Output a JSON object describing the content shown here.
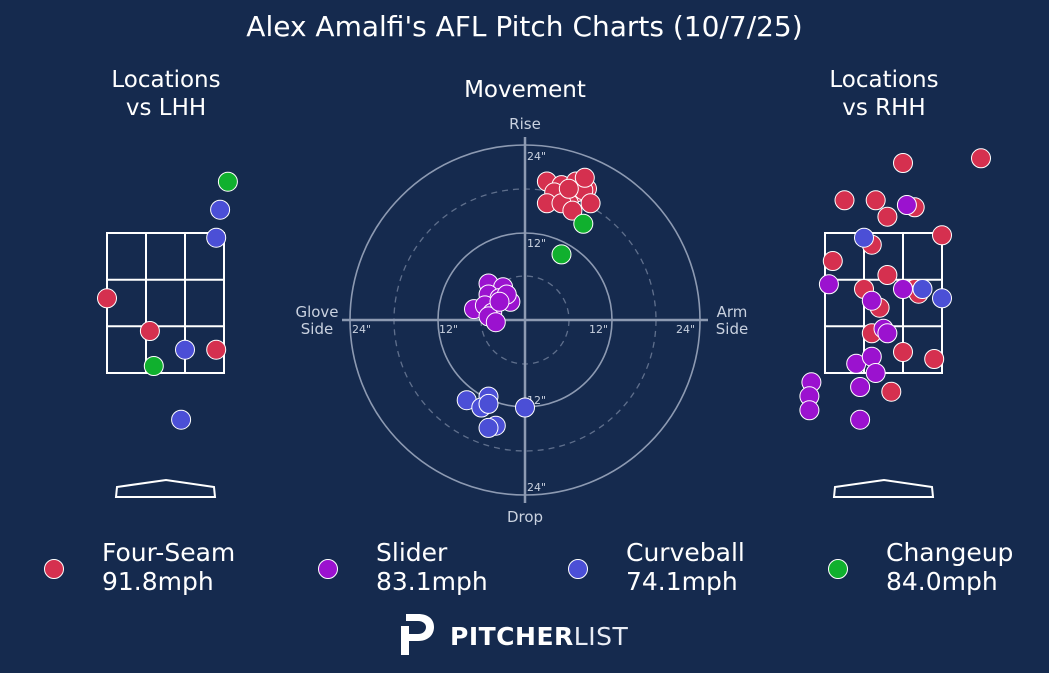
{
  "title": "Alex Amalfi's AFL Pitch Charts (10/7/25)",
  "panels": {
    "lhh_title_line1": "Locations",
    "lhh_title_line2": "vs LHH",
    "movement_title": "Movement",
    "rhh_title_line1": "Locations",
    "rhh_title_line2": "vs RHH"
  },
  "movement_labels": {
    "top": "Rise",
    "bottom": "Drop",
    "left_line1": "Glove",
    "left_line2": "Side",
    "right_line1": "Arm",
    "right_line2": "Side",
    "rings": [
      "12\"",
      "24\""
    ]
  },
  "colors": {
    "background": "#152a4e",
    "Four-Seam": "#d5304f",
    "Slider": "#9b12cf",
    "Curveball": "#4b4fd6",
    "Changeup": "#10b02e"
  },
  "legend": [
    {
      "pitch": "Four-Seam",
      "speed": "91.8mph"
    },
    {
      "pitch": "Slider",
      "speed": "83.1mph"
    },
    {
      "pitch": "Curveball",
      "speed": "74.1mph"
    },
    {
      "pitch": "Changeup",
      "speed": "84.0mph"
    }
  ],
  "logo": {
    "bold": "PITCHER",
    "light": "LIST"
  },
  "chart_data": [
    {
      "type": "scatter",
      "title": "Locations vs LHH",
      "x_unit": "zone-relative horizontal (-1.5 = left edge, 1.5 = right edge of zone)",
      "y_unit": "zone-relative vertical (0 = bottom, 3 = top of zone)",
      "series": [
        {
          "name": "Four-Seam",
          "points": [
            [
              -1.5,
              1.6
            ],
            [
              -0.4,
              0.9
            ],
            [
              1.3,
              0.5
            ]
          ]
        },
        {
          "name": "Curveball",
          "points": [
            [
              1.4,
              3.5
            ],
            [
              1.3,
              2.9
            ],
            [
              0.5,
              0.5
            ],
            [
              0.4,
              -1.0
            ]
          ]
        },
        {
          "name": "Changeup",
          "points": [
            [
              1.6,
              4.1
            ],
            [
              -0.3,
              0.15
            ]
          ]
        }
      ]
    },
    {
      "type": "scatter",
      "title": "Movement",
      "x_unit": "inches horizontal (negative = glove side, positive = arm side)",
      "y_unit": "inches vertical (positive = rise, negative = drop)",
      "xlim": [
        -24,
        24
      ],
      "ylim": [
        -24,
        24
      ],
      "series": [
        {
          "name": "Four-Seam",
          "points": [
            [
              3,
              19
            ],
            [
              5,
              18.5
            ],
            [
              7,
              19
            ],
            [
              8.5,
              18
            ],
            [
              5.5,
              17
            ],
            [
              7,
              17.5
            ],
            [
              4,
              17.5
            ],
            [
              6,
              16
            ],
            [
              3,
              16
            ],
            [
              8,
              17.8
            ],
            [
              5,
              16
            ],
            [
              9,
              16
            ],
            [
              6.5,
              15
            ],
            [
              6,
              18
            ],
            [
              8.2,
              19.5
            ]
          ]
        },
        {
          "name": "Slider",
          "points": [
            [
              -5,
              5
            ],
            [
              -3,
              4.5
            ],
            [
              -5,
              3.5
            ],
            [
              -3.5,
              3
            ],
            [
              -7,
              1.5
            ],
            [
              -5.5,
              2
            ],
            [
              -2,
              2.5
            ],
            [
              -4.5,
              1
            ],
            [
              -5,
              0.5
            ],
            [
              -4,
              -0.3
            ],
            [
              -2.5,
              3.5
            ],
            [
              -3.5,
              2.5
            ]
          ]
        },
        {
          "name": "Curveball",
          "points": [
            [
              -5,
              -10.5
            ],
            [
              -8,
              -11
            ],
            [
              -6,
              -12
            ],
            [
              -5,
              -11.5
            ],
            [
              -4,
              -14.5
            ],
            [
              -5,
              -14.8
            ],
            [
              0,
              -12
            ]
          ]
        },
        {
          "name": "Changeup",
          "points": [
            [
              8,
              13.2
            ],
            [
              5,
              9
            ]
          ]
        }
      ]
    },
    {
      "type": "scatter",
      "title": "Locations vs RHH",
      "x_unit": "zone-relative horizontal (-1.5 = left edge, 1.5 = right edge of zone)",
      "y_unit": "zone-relative vertical (0 = bottom, 3 = top of zone)",
      "series": [
        {
          "name": "Four-Seam",
          "points": [
            [
              0.5,
              4.5
            ],
            [
              2.5,
              4.6
            ],
            [
              -1.0,
              3.7
            ],
            [
              -0.2,
              3.7
            ],
            [
              0.1,
              3.35
            ],
            [
              0.8,
              3.55
            ],
            [
              -0.3,
              2.75
            ],
            [
              1.5,
              2.95
            ],
            [
              -1.3,
              2.4
            ],
            [
              0.1,
              2.1
            ],
            [
              -0.5,
              1.8
            ],
            [
              0.8,
              1.8
            ],
            [
              0.9,
              1.7
            ],
            [
              -0.1,
              1.4
            ],
            [
              -0.3,
              0.85
            ],
            [
              0.5,
              0.45
            ],
            [
              1.3,
              0.3
            ],
            [
              0.2,
              -0.4
            ]
          ]
        },
        {
          "name": "Slider",
          "points": [
            [
              0.6,
              3.6
            ],
            [
              -1.4,
              1.9
            ],
            [
              -0.3,
              1.55
            ],
            [
              0.5,
              1.8
            ],
            [
              0.0,
              0.95
            ],
            [
              0.1,
              0.85
            ],
            [
              -0.7,
              0.2
            ],
            [
              -0.3,
              0.35
            ],
            [
              -1.85,
              -0.2
            ],
            [
              -1.9,
              -0.5
            ],
            [
              -1.9,
              -0.8
            ],
            [
              -0.6,
              -0.3
            ],
            [
              -0.2,
              0.0
            ],
            [
              -0.6,
              -1.0
            ]
          ]
        },
        {
          "name": "Curveball",
          "points": [
            [
              -0.5,
              2.9
            ],
            [
              1.0,
              1.8
            ],
            [
              1.5,
              1.6
            ]
          ]
        }
      ]
    }
  ]
}
